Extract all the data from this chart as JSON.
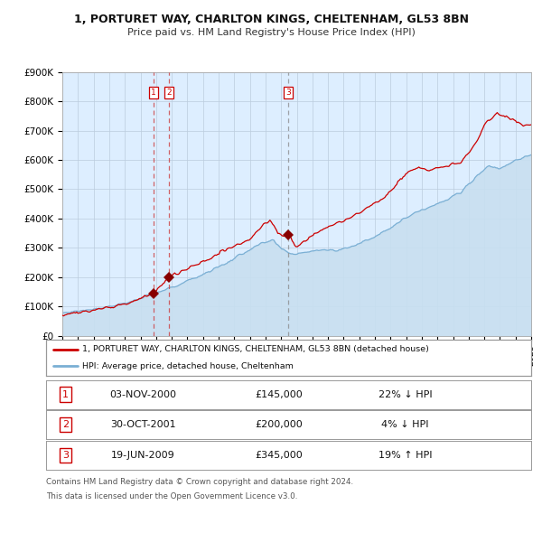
{
  "title1": "1, PORTURET WAY, CHARLTON KINGS, CHELTENHAM, GL53 8BN",
  "title2": "Price paid vs. HM Land Registry's House Price Index (HPI)",
  "legend_red": "1, PORTURET WAY, CHARLTON KINGS, CHELTENHAM, GL53 8BN (detached house)",
  "legend_blue": "HPI: Average price, detached house, Cheltenham",
  "transactions": [
    {
      "num": "1",
      "date_label": "03-NOV-2000",
      "year": 2000.84,
      "price": 145000,
      "note": "22% ↓ HPI"
    },
    {
      "num": "2",
      "date_label": "30-OCT-2001",
      "year": 2001.82,
      "price": 200000,
      "note": "4% ↓ HPI"
    },
    {
      "num": "3",
      "date_label": "19-JUN-2009",
      "year": 2009.46,
      "price": 345000,
      "note": "19% ↑ HPI"
    }
  ],
  "red_line_color": "#cc0000",
  "blue_line_color": "#7aafd4",
  "blue_fill_color": "#c8dff0",
  "bg_color": "#ddeeff",
  "footnote1": "Contains HM Land Registry data © Crown copyright and database right 2024.",
  "footnote2": "This data is licensed under the Open Government Licence v3.0.",
  "ylim": [
    0,
    900000
  ],
  "xlim": [
    1995,
    2025
  ],
  "ytick_labels": [
    "£0",
    "£100K",
    "£200K",
    "£300K",
    "£400K",
    "£500K",
    "£600K",
    "£700K",
    "£800K",
    "£900K"
  ],
  "ytick_values": [
    0,
    100000,
    200000,
    300000,
    400000,
    500000,
    600000,
    700000,
    800000,
    900000
  ]
}
